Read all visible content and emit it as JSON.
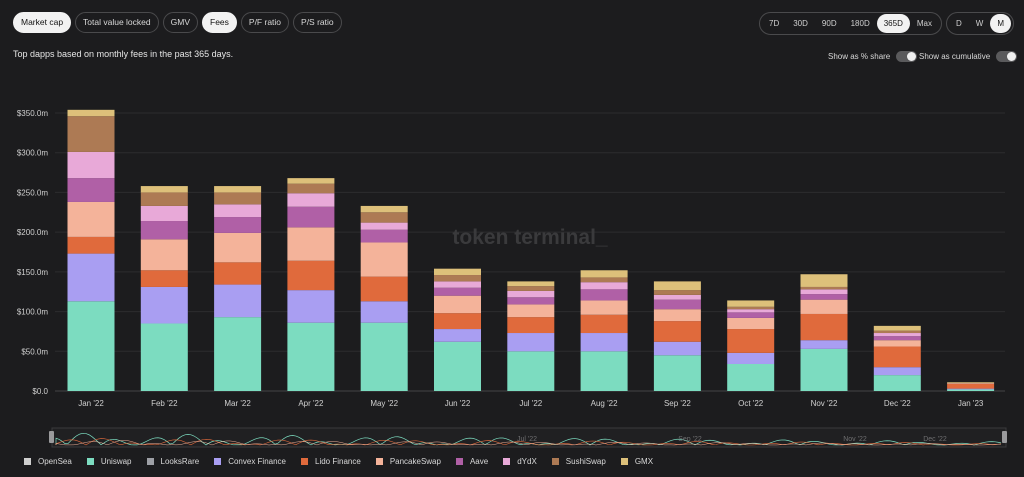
{
  "tabs": [
    {
      "label": "Market cap",
      "active": true
    },
    {
      "label": "Total value locked",
      "active": false
    },
    {
      "label": "GMV",
      "active": false
    },
    {
      "label": "Fees",
      "active": true
    },
    {
      "label": "P/F ratio",
      "active": false
    },
    {
      "label": "P/S ratio",
      "active": false
    }
  ],
  "ranges": [
    {
      "label": "7D",
      "active": false
    },
    {
      "label": "30D",
      "active": false
    },
    {
      "label": "90D",
      "active": false
    },
    {
      "label": "180D",
      "active": false
    },
    {
      "label": "365D",
      "active": true
    },
    {
      "label": "Max",
      "active": false
    }
  ],
  "granularity": [
    {
      "label": "D",
      "active": false
    },
    {
      "label": "W",
      "active": false
    },
    {
      "label": "M",
      "active": true
    }
  ],
  "subtitle": "Top dapps based on monthly fees in the past 365 days.",
  "toggles": {
    "share": "Show as % share",
    "cumulative": "Show as cumulative"
  },
  "watermark": "token terminal_",
  "navigator_labels": [
    "Jul '22",
    "Sep '22",
    "Nov '22",
    "Dec '22"
  ],
  "chart_data": {
    "type": "bar",
    "stacked": true,
    "categories": [
      "Jan '22",
      "Feb '22",
      "Mar '22",
      "Apr '22",
      "May '22",
      "Jun '22",
      "Jul '22",
      "Aug '22",
      "Sep '22",
      "Oct '22",
      "Nov '22",
      "Dec '22",
      "Jan '23"
    ],
    "y_ticks": [
      "$0.0",
      "$50.0m",
      "$100.0m",
      "$150.0m",
      "$200.0m",
      "$250.0m",
      "$300.0m",
      "$350.0m"
    ],
    "ylim": [
      0,
      350
    ],
    "grid": true,
    "legend_position": "bottom",
    "series": [
      {
        "name": "OpenSea",
        "color": "#cfcfcf",
        "values": [
          0,
          0,
          0,
          0,
          0,
          0,
          0,
          0,
          0,
          0,
          0,
          0,
          0
        ]
      },
      {
        "name": "Uniswap",
        "color": "#7cdcc0",
        "values": [
          113,
          85,
          93,
          86,
          86,
          62,
          50,
          50,
          45,
          34,
          53,
          20,
          2
        ]
      },
      {
        "name": "LooksRare",
        "color": "#9ea0a6",
        "values": [
          0,
          0,
          0,
          0,
          0,
          0,
          0,
          0,
          0,
          0,
          0,
          0,
          0
        ]
      },
      {
        "name": "Convex Finance",
        "color": "#a99ef2",
        "values": [
          60,
          46,
          41,
          41,
          27,
          16,
          23,
          23,
          17,
          14,
          11,
          10,
          1
        ]
      },
      {
        "name": "Lido Finance",
        "color": "#e06a3c",
        "values": [
          21,
          21,
          28,
          37,
          31,
          20,
          20,
          23,
          26,
          30,
          33,
          26,
          6
        ]
      },
      {
        "name": "PancakeSwap",
        "color": "#f4b39a",
        "values": [
          44,
          39,
          37,
          42,
          43,
          22,
          16,
          18,
          15,
          14,
          18,
          8,
          1
        ]
      },
      {
        "name": "Aave",
        "color": "#b060a6",
        "values": [
          30,
          23,
          20,
          26,
          16,
          10,
          9,
          14,
          12,
          7,
          7,
          5,
          0
        ]
      },
      {
        "name": "dYdX",
        "color": "#e8a9d8",
        "values": [
          33,
          19,
          16,
          17,
          9,
          8,
          8,
          9,
          6,
          4,
          6,
          4,
          0
        ]
      },
      {
        "name": "SushiSwap",
        "color": "#ad7a54",
        "values": [
          45,
          17,
          15,
          12,
          13,
          8,
          6,
          6,
          6,
          3,
          3,
          3,
          0
        ]
      },
      {
        "name": "GMX",
        "color": "#ddc07a",
        "values": [
          8,
          8,
          8,
          7,
          8,
          8,
          6,
          9,
          11,
          8,
          16,
          6,
          1
        ]
      }
    ]
  }
}
